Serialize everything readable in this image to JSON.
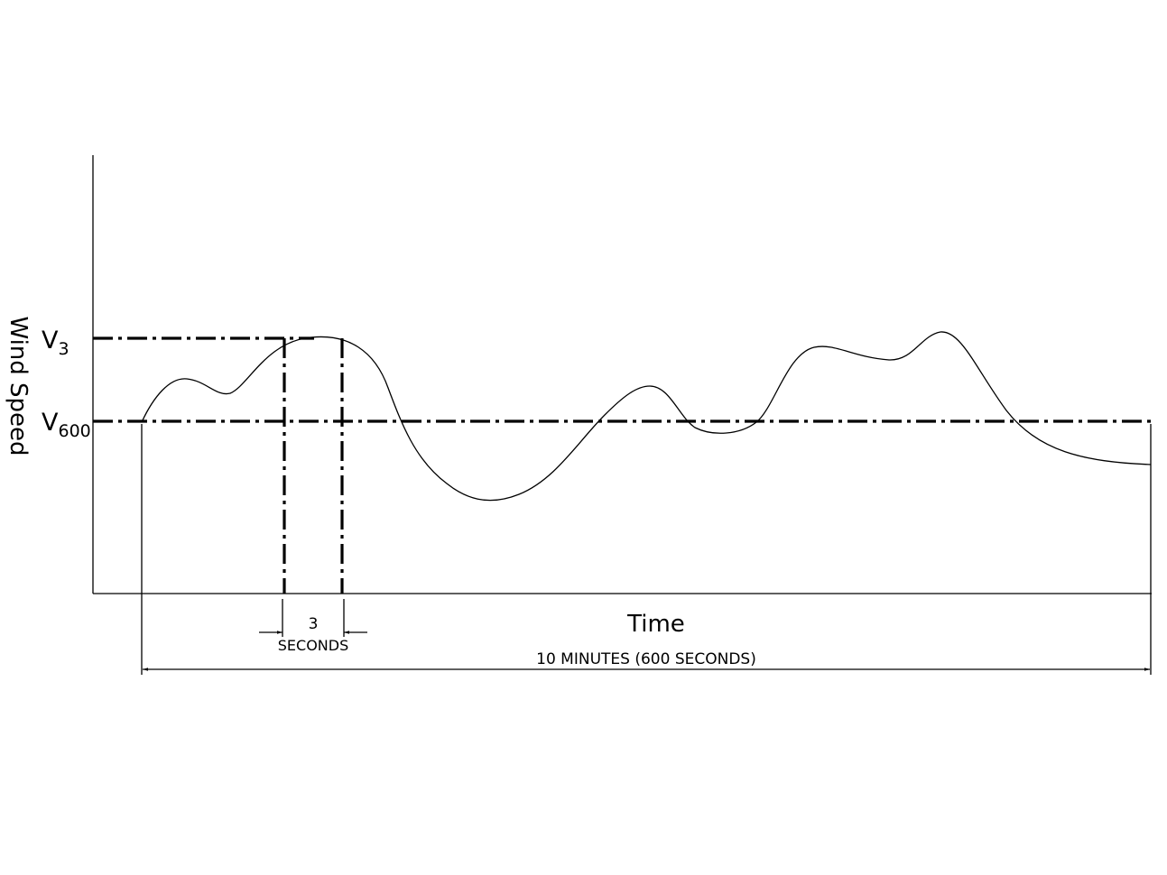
{
  "diagram": {
    "y_axis_label": "Wind Speed",
    "x_axis_label": "Time",
    "levels": {
      "v3": {
        "base": "V",
        "sub": "3"
      },
      "v600": {
        "base": "V",
        "sub": "600"
      }
    },
    "gust_interval": {
      "value": "3",
      "unit": "SECONDS"
    },
    "averaging_period": "10 MINUTES (600 SECONDS)"
  }
}
